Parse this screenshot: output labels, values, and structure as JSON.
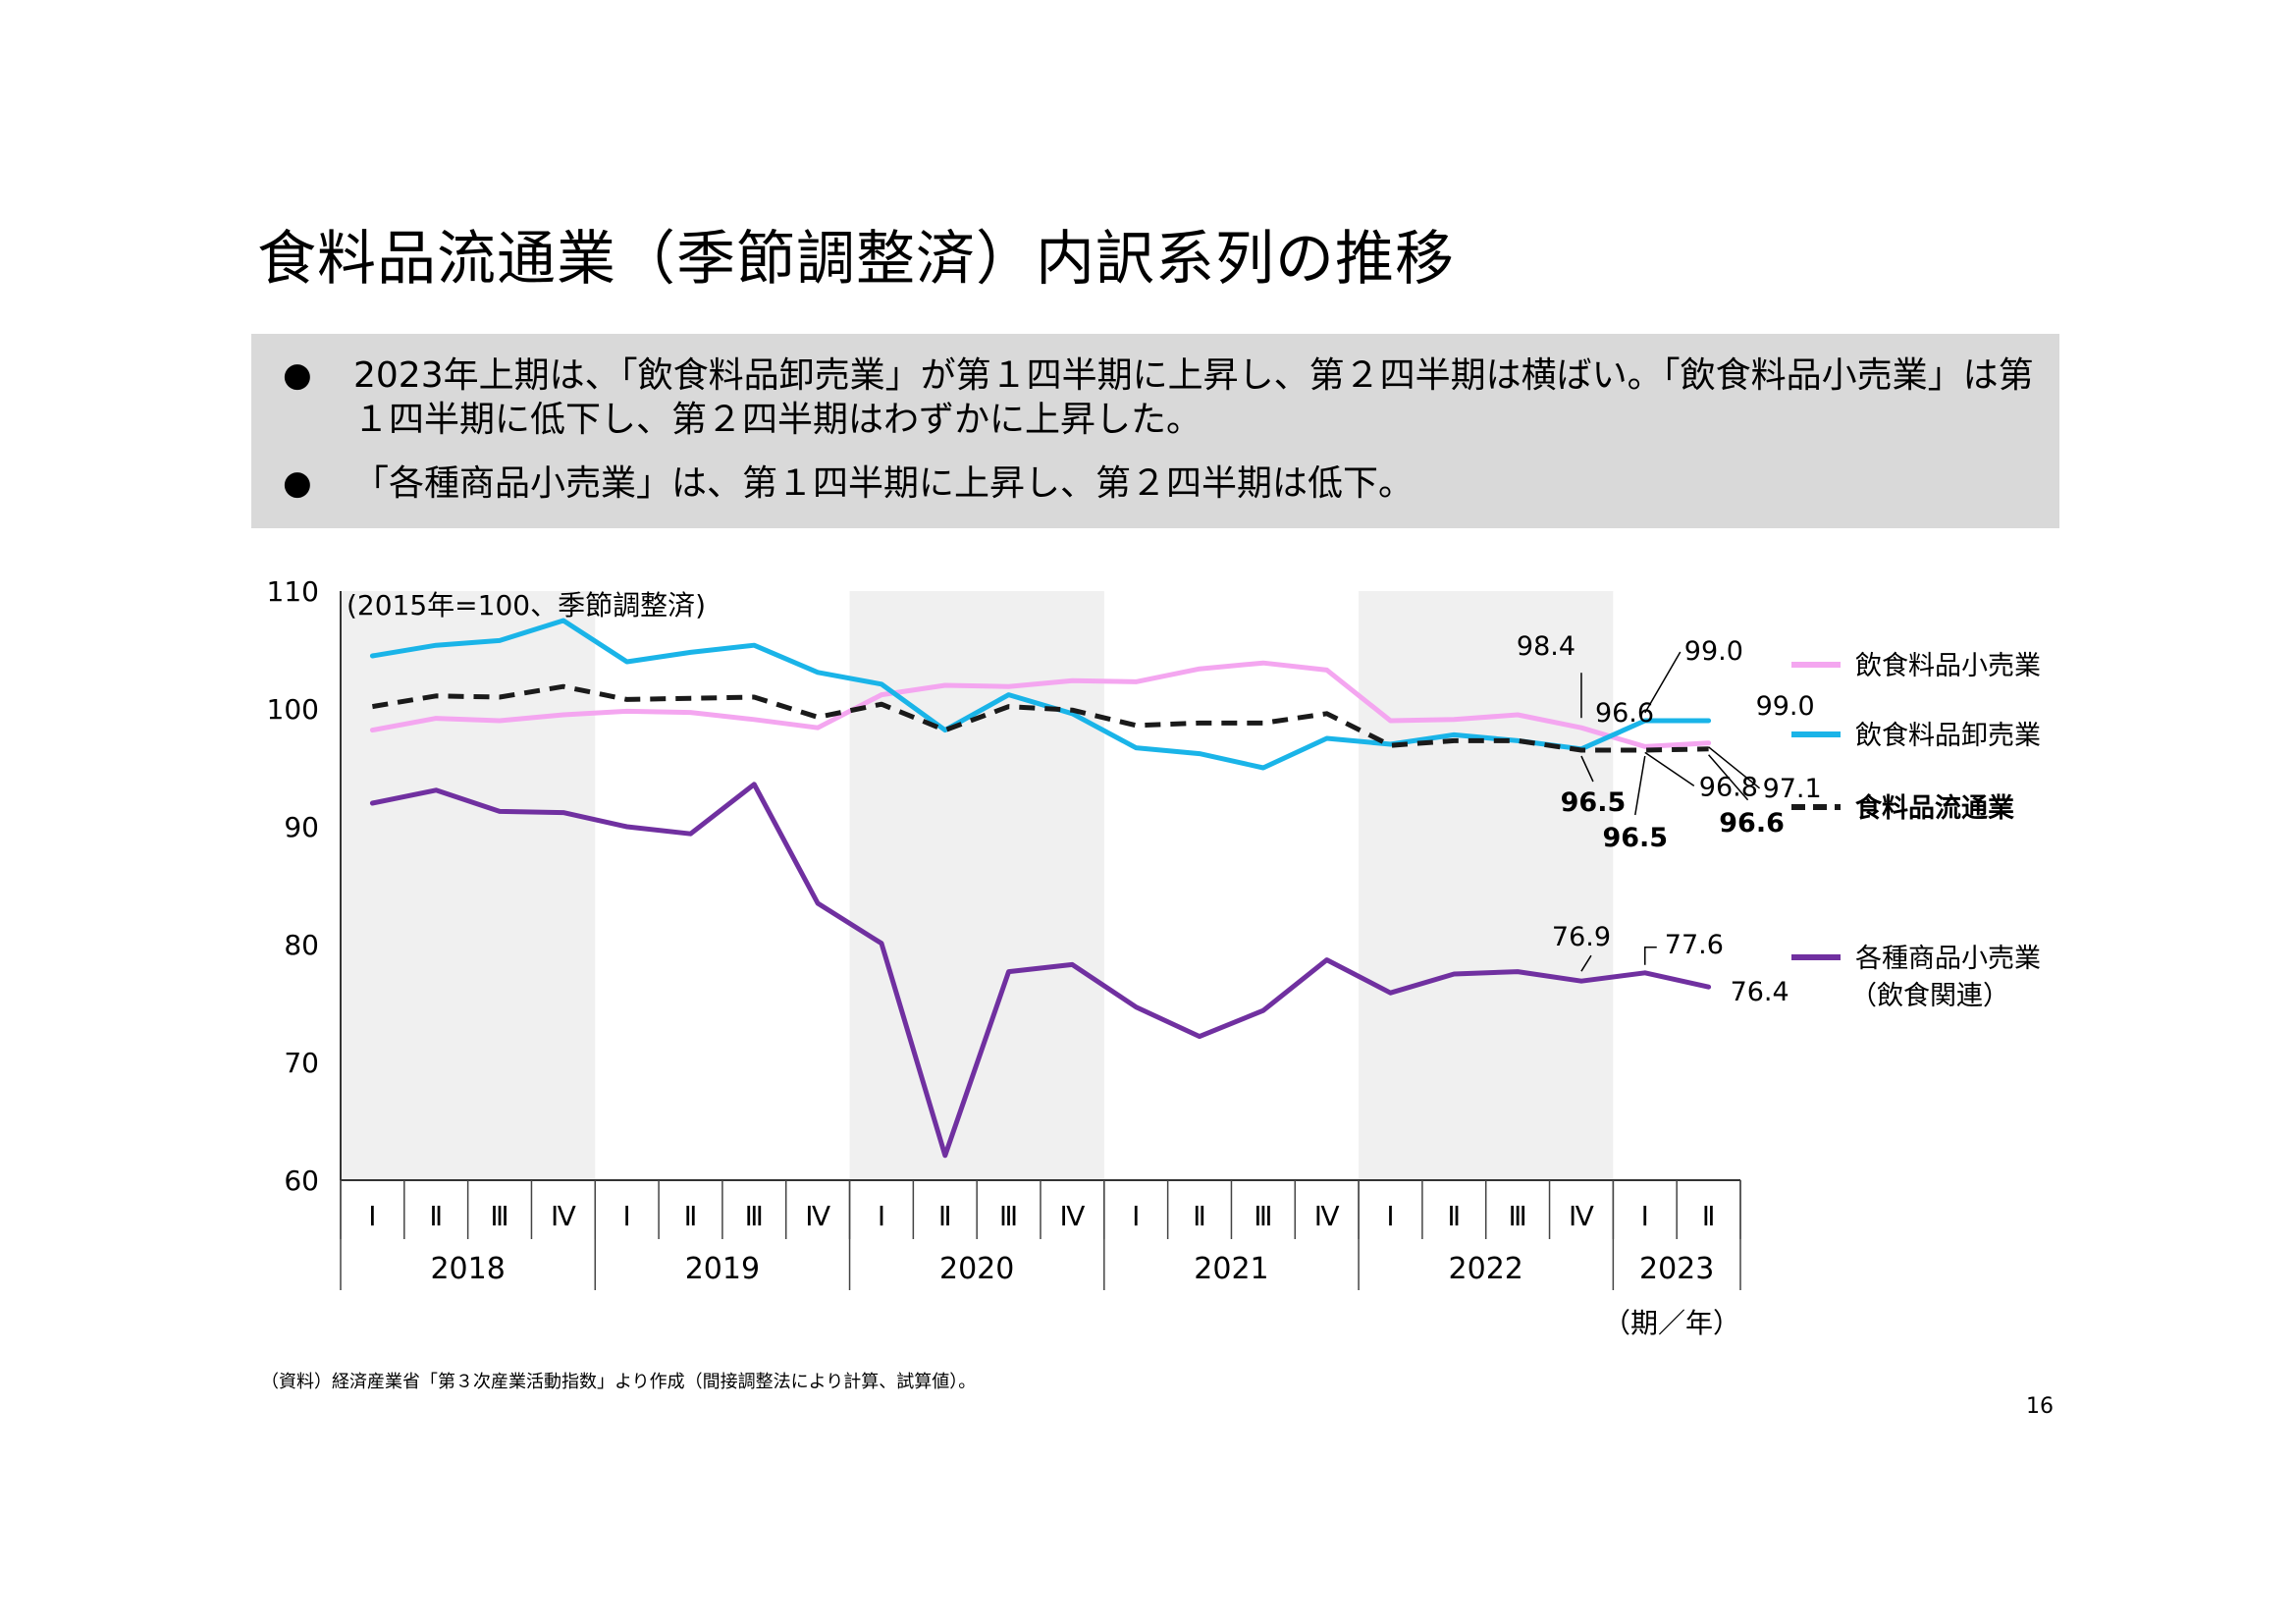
{
  "title": "食料品流通業（季節調整済）内訳系列の推移",
  "summary": {
    "bullets": [
      "2023年上期は、「飲食料品卸売業」が第１四半期に上昇し、第２四半期は横ばい。「飲食料品小売業」は第１四半期に低下し、第２四半期はわずかに上昇した。",
      "「各種商品小売業」は、第１四半期に上昇し、第２四半期は低下。"
    ],
    "bullet_icon": "black-circle-icon"
  },
  "chart_data": {
    "type": "line",
    "unit_note": "(2015年=100、季節調整済)",
    "xlabel": "（期／年）",
    "ylim": [
      60,
      110
    ],
    "yticks": [
      "60",
      "70",
      "80",
      "90",
      "100",
      "110"
    ],
    "quarters": [
      "Ⅰ",
      "Ⅱ",
      "Ⅲ",
      "Ⅳ",
      "Ⅰ",
      "Ⅱ",
      "Ⅲ",
      "Ⅳ",
      "Ⅰ",
      "Ⅱ",
      "Ⅲ",
      "Ⅳ",
      "Ⅰ",
      "Ⅱ",
      "Ⅲ",
      "Ⅳ",
      "Ⅰ",
      "Ⅱ",
      "Ⅲ",
      "Ⅳ",
      "Ⅰ",
      "Ⅱ"
    ],
    "years": [
      {
        "label": "2018",
        "quarters": 4
      },
      {
        "label": "2019",
        "quarters": 4
      },
      {
        "label": "2020",
        "quarters": 4
      },
      {
        "label": "2021",
        "quarters": 4
      },
      {
        "label": "2022",
        "quarters": 4
      },
      {
        "label": "2023",
        "quarters": 2
      }
    ],
    "shaded_years": [
      0,
      2,
      4
    ],
    "series": [
      {
        "name": "飲食料品小売業",
        "color": "#f4a6f0",
        "style": "solid",
        "values": [
          98.2,
          99.2,
          99.0,
          99.5,
          99.8,
          99.7,
          99.1,
          98.4,
          101.2,
          102.0,
          101.9,
          102.4,
          102.3,
          103.4,
          103.9,
          103.3,
          99.0,
          99.1,
          99.5,
          98.4,
          96.8,
          97.1
        ],
        "labels": [
          {
            "index": 19,
            "text": "98.4"
          },
          {
            "index": 20,
            "text": "96.8"
          },
          {
            "index": 21,
            "text": "97.1"
          }
        ]
      },
      {
        "name": "飲食料品卸売業",
        "color": "#1ab4e8",
        "style": "solid",
        "values": [
          104.5,
          105.4,
          105.8,
          107.5,
          104.0,
          104.8,
          105.4,
          103.1,
          102.1,
          98.2,
          101.2,
          99.6,
          96.7,
          96.2,
          95.0,
          97.5,
          97.0,
          97.8,
          97.3,
          96.6,
          99.0,
          99.0
        ],
        "labels": [
          {
            "index": 19,
            "text": "96.6"
          },
          {
            "index": 20,
            "text": "99.0"
          },
          {
            "index": 21,
            "text": "99.0"
          }
        ]
      },
      {
        "name": "食料品流通業",
        "color": "#1a1a1a",
        "style": "dashed",
        "values": [
          100.2,
          101.1,
          101.0,
          101.9,
          100.8,
          100.9,
          101.0,
          99.3,
          100.4,
          98.2,
          100.2,
          99.9,
          98.6,
          98.8,
          98.8,
          99.6,
          96.9,
          97.3,
          97.3,
          96.5,
          96.5,
          96.6
        ],
        "labels": [
          {
            "index": 19,
            "text": "96.5"
          },
          {
            "index": 20,
            "text": "96.5"
          },
          {
            "index": 21,
            "text": "96.6"
          }
        ]
      },
      {
        "name": "各種商品小売業",
        "name_sub": "（飲食関連）",
        "color": "#7030a0",
        "style": "solid",
        "values": [
          92.0,
          93.1,
          91.3,
          91.2,
          90.0,
          89.4,
          93.6,
          83.5,
          80.1,
          62.1,
          77.7,
          78.3,
          74.7,
          72.2,
          74.4,
          78.7,
          75.9,
          77.5,
          77.7,
          76.9,
          77.6,
          76.4
        ],
        "labels": [
          {
            "index": 19,
            "text": "76.9"
          },
          {
            "index": 20,
            "text": "77.6"
          },
          {
            "index": 21,
            "text": "76.4"
          }
        ]
      }
    ]
  },
  "source_note": "（資料）経済産業省「第３次産業活動指数」より作成（間接調整法により計算、試算値）。",
  "page_number": "16"
}
